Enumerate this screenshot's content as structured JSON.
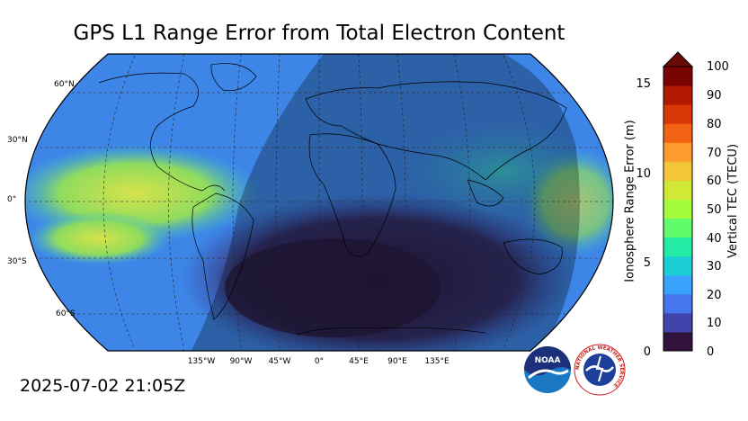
{
  "title": "GPS L1 Range Error from Total Electron Content",
  "timestamp": "2025-07-02 21:05Z",
  "map": {
    "lat_labels": [
      "60°N",
      "30°N",
      "0°",
      "30°S",
      "60°S"
    ],
    "lon_labels": [
      "135°W",
      "90°W",
      "45°W",
      "0°",
      "45°E",
      "90°E",
      "135°E"
    ],
    "night_shading": true
  },
  "colorbar": {
    "left_label": "Ionosphere Range Error (m)",
    "right_label": "Vertical TEC (TECU)",
    "left_ticks": [
      "15",
      "10",
      "5",
      "0"
    ],
    "right_ticks": [
      "100",
      "90",
      "80",
      "70",
      "60",
      "50",
      "40",
      "30",
      "20",
      "10",
      "0"
    ],
    "colors": [
      "#30123b",
      "#4145ab",
      "#4675ed",
      "#39a2fc",
      "#1bcfd4",
      "#24eca6",
      "#61fc6c",
      "#a4fc3b",
      "#d1e834",
      "#f3c63a",
      "#fe9b2d",
      "#f36315",
      "#d93806",
      "#b11901",
      "#7a0402"
    ]
  },
  "logos": [
    {
      "name": "noaa",
      "text": "NOAA"
    },
    {
      "name": "nws",
      "text": "NATIONAL WEATHER SERVICE"
    }
  ]
}
